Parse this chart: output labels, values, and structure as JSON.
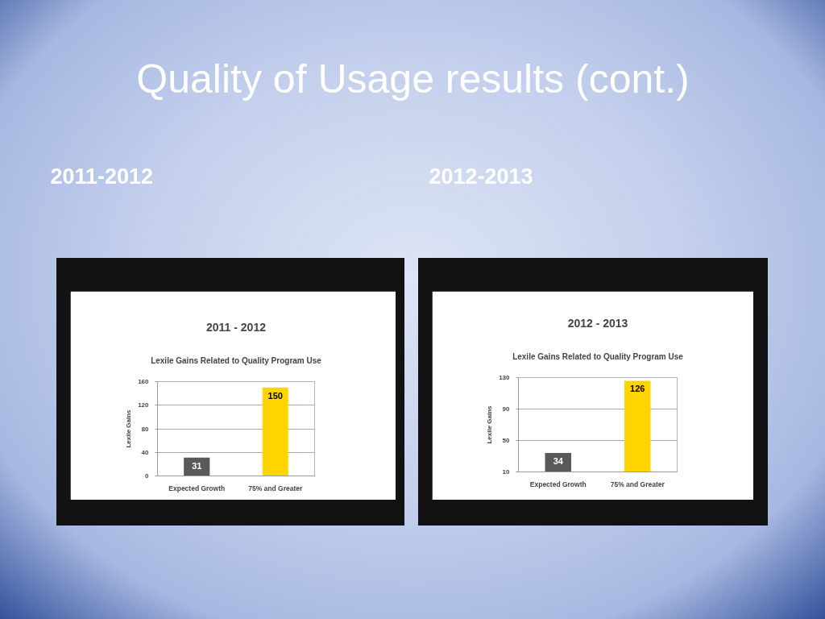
{
  "chart_data": [
    {
      "type": "bar",
      "title": "2011 - 2012",
      "subtitle": "Lexile Gains Related to Quality Program Use",
      "ylabel": "Lexile Gains",
      "categories": [
        "Expected Growth",
        "75% and Greater"
      ],
      "values": [
        31,
        150
      ],
      "colors": [
        "#595959",
        "#ffd400"
      ],
      "ylim": [
        0,
        160
      ],
      "yticks": [
        0,
        40,
        80,
        120,
        160
      ],
      "grid": "y",
      "data_labels": true,
      "annotations": [
        "Quality of Usage results (cont.)",
        "2011-2012"
      ]
    },
    {
      "type": "bar",
      "title": "2012 - 2013",
      "subtitle": "Lexile Gains Related to Quality Program Use",
      "ylabel": "Lexile Gains",
      "categories": [
        "Expected Growth",
        "75% and Greater"
      ],
      "values": [
        34,
        126
      ],
      "colors": [
        "#595959",
        "#ffd400"
      ],
      "ylim": [
        10,
        130
      ],
      "yticks": [
        10,
        50,
        90,
        130
      ],
      "grid": "y",
      "data_labels": true,
      "annotations": [
        "2012-2013"
      ]
    }
  ]
}
